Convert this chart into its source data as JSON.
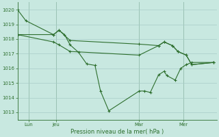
{
  "bg_color": "#c8e8e0",
  "grid_color": "#a8ccc8",
  "line_color": "#2d6e2d",
  "xlabel": "Pression niveau de la mer( hPa )",
  "ylim": [
    1012.5,
    1020.5
  ],
  "yticks": [
    1013,
    1014,
    1015,
    1016,
    1017,
    1018,
    1019,
    1020
  ],
  "xlim": [
    0,
    36
  ],
  "x_tick_positions": [
    2,
    7,
    22,
    30
  ],
  "x_tick_labels": [
    "Lun",
    "Jeu",
    "Mar",
    "Mer"
  ],
  "series1_x": [
    0,
    1.5,
    6.5,
    7.5,
    8.5,
    9.5,
    11,
    12.5,
    14,
    15,
    16.5,
    22,
    23,
    24,
    25.5,
    26.5,
    27,
    28.5,
    29.5,
    30.5,
    31.5,
    35.5
  ],
  "series1_y": [
    1020.0,
    1019.25,
    1018.3,
    1018.6,
    1018.3,
    1017.6,
    1017.1,
    1016.3,
    1016.2,
    1014.45,
    1013.1,
    1014.45,
    1014.45,
    1014.35,
    1015.55,
    1015.8,
    1015.5,
    1015.2,
    1016.0,
    1016.25,
    1016.4,
    1016.4
  ],
  "series2_x": [
    0,
    6.5,
    7.5,
    9.5,
    22,
    25.5,
    26.5,
    28,
    29,
    30.5,
    31.5,
    35.5
  ],
  "series2_y": [
    1018.3,
    1018.3,
    1018.6,
    1017.9,
    1017.65,
    1017.55,
    1017.8,
    1017.55,
    1017.15,
    1016.9,
    1016.25,
    1016.4
  ],
  "series3_x": [
    0,
    6.5,
    7.5,
    9.5,
    22,
    25.5,
    26.5,
    28,
    29,
    30.5,
    31.5,
    35.5
  ],
  "series3_y": [
    1018.3,
    1017.8,
    1017.6,
    1017.15,
    1016.9,
    1017.55,
    1017.8,
    1017.55,
    1017.15,
    1016.9,
    1016.25,
    1016.4
  ]
}
